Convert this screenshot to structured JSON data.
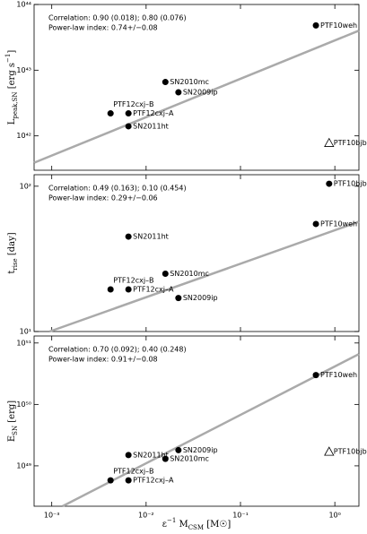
{
  "chart_data": [
    {
      "type": "scatter",
      "ylabel_parts": [
        "L",
        "peak,SN",
        " [erg s",
        "−1",
        "]"
      ],
      "annotations": [
        "Correlation: 0.90 (0.018);   0.80 (0.076)",
        "Power-law index: 0.74+/−0.08"
      ],
      "labels": [
        "PTF12cxj–B",
        "PTF12cxj–A",
        "SN2011ht",
        "SN2010mc",
        "SN2009ip",
        "PTF10weh",
        "PTF10bjb"
      ],
      "markers": [
        "circle",
        "circle",
        "circle",
        "circle",
        "circle",
        "circle",
        "triangle"
      ],
      "x": [
        0.0042,
        0.0065,
        0.0065,
        0.016,
        0.022,
        0.63,
        0.87
      ],
      "y": [
        2.2e+42,
        2.2e+42,
        1.4e+42,
        6.6e+42,
        4.6e+42,
        4.8e+43,
        7.8e+41
      ],
      "fit": {
        "x": [
          0.00065,
          1.8
        ],
        "y": [
          3.9e+41,
          4e+43
        ],
        "color": "#aaaaaa"
      },
      "xlim": [
        0.00065,
        1.8
      ],
      "ylim": [
        3e+41,
        1e+44
      ],
      "log": true,
      "yticks": [
        {
          "value": 1e+42,
          "label": "10⁴²"
        },
        {
          "value": 1e+43,
          "label": "10⁴³"
        },
        {
          "value": 1e+44,
          "label": "10⁴⁴"
        }
      ]
    },
    {
      "type": "scatter",
      "ylabel_parts": [
        "t",
        "rise",
        " [day]"
      ],
      "annotations": [
        "Correlation: 0.49 (0.163);   0.10 (0.454)",
        "Power-law index: 0.29+/−0.06"
      ],
      "labels": [
        "PTF12cxj–B",
        "PTF12cxj–A",
        "SN2011ht",
        "SN2010mc",
        "SN2009ip",
        "PTF10weh",
        "PTF10bjb"
      ],
      "markers": [
        "circle",
        "circle",
        "circle",
        "circle",
        "circle",
        "circle",
        "circle"
      ],
      "x": [
        0.0042,
        0.0065,
        0.0065,
        0.016,
        0.022,
        0.63,
        0.87
      ],
      "y": [
        19.5,
        19.5,
        45,
        25,
        17,
        55,
        104
      ],
      "fit": {
        "x": [
          0.00095,
          1.8
        ],
        "y": [
          10,
          57
        ],
        "color": "#aaaaaa"
      },
      "xlim": [
        0.00065,
        1.8
      ],
      "ylim": [
        10,
        120
      ],
      "log": true,
      "yticks": [
        {
          "value": 10,
          "label": "10¹"
        },
        {
          "value": 100,
          "label": "10²"
        }
      ]
    },
    {
      "type": "scatter",
      "ylabel_parts": [
        "E",
        "SN",
        " [erg]"
      ],
      "annotations": [
        "Correlation: 0.70 (0.092);   0.40 (0.248)",
        "Power-law index: 0.91+/−0.08"
      ],
      "labels": [
        "PTF12cxj–B",
        "PTF12cxj–A",
        "SN2011ht",
        "SN2010mc",
        "SN2009ip",
        "PTF10weh",
        "PTF10bjb"
      ],
      "markers": [
        "circle",
        "circle",
        "circle",
        "circle",
        "circle",
        "circle",
        "triangle"
      ],
      "x": [
        0.0042,
        0.0065,
        0.0065,
        0.016,
        0.022,
        0.63,
        0.87
      ],
      "y": [
        5.8e+48,
        5.8e+48,
        1.5e+49,
        1.3e+49,
        1.8e+49,
        3e+50,
        1.7e+49
      ],
      "fit": {
        "x": [
          0.0013,
          1.8
        ],
        "y": [
          2.2e+48,
          6.6e+50
        ],
        "color": "#aaaaaa"
      },
      "xlim": [
        0.00065,
        1.8
      ],
      "ylim": [
        2.2e+48,
        1.3e+51
      ],
      "log": true,
      "yticks": [
        {
          "value": 1e+49,
          "label": "10⁴⁹"
        },
        {
          "value": 1e+50,
          "label": "10⁵⁰"
        },
        {
          "value": 1e+51,
          "label": "10⁵¹"
        }
      ],
      "xticks": [
        {
          "value": 0.001,
          "label": "10⁻³"
        },
        {
          "value": 0.01,
          "label": "10⁻²"
        },
        {
          "value": 0.1,
          "label": "10⁻¹"
        },
        {
          "value": 1,
          "label": "10⁰"
        }
      ],
      "xlabel_parts": [
        "ε",
        "−1",
        " M",
        "CSM",
        " [M☉]"
      ]
    }
  ]
}
